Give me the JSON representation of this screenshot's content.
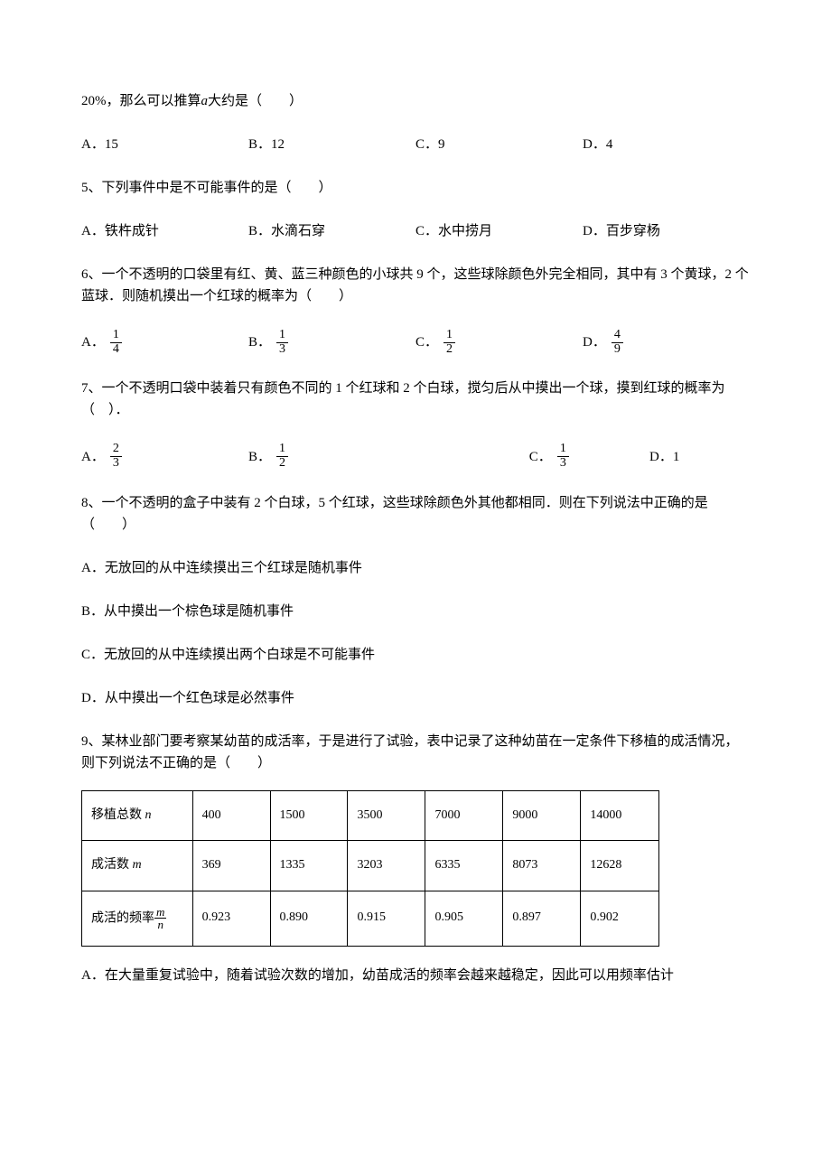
{
  "q_pre": "20%，那么可以推算",
  "q_pre_var": "a",
  "q_pre_after": "大约是（　　）",
  "q_pre_options": {
    "A": "A．15",
    "B": "B．12",
    "C": "C．9",
    "D": "D．4"
  },
  "q5": {
    "stem": "5、下列事件中是不可能事件的是（　　）",
    "A": "A．铁杵成针",
    "B": "B．水滴石穿",
    "C": "C．水中捞月",
    "D": "D．百步穿杨"
  },
  "q6": {
    "stem": "6、一个不透明的口袋里有红、黄、蓝三种颜色的小球共 9 个，这些球除颜色外完全相同，其中有 3 个黄球，2 个蓝球．则随机摸出一个红球的概率为（　　）",
    "A": "A．",
    "B": "B．",
    "C": "C．",
    "D": "D．",
    "fracs": {
      "A": [
        "1",
        "4"
      ],
      "B": [
        "1",
        "3"
      ],
      "C": [
        "1",
        "2"
      ],
      "D": [
        "4",
        "9"
      ]
    }
  },
  "q7": {
    "stem": "7、一个不透明口袋中装着只有颜色不同的 1 个红球和 2 个白球，搅匀后从中摸出一个球，摸到红球的概率为（　）．",
    "A": "A．",
    "B": "B．",
    "C": "C．",
    "D": "D．1",
    "fracs": {
      "A": [
        "2",
        "3"
      ],
      "B": [
        "1",
        "2"
      ],
      "C": [
        "1",
        "3"
      ]
    }
  },
  "q8": {
    "stem": "8、一个不透明的盒子中装有 2 个白球，5 个红球，这些球除颜色外其他都相同．则在下列说法中正确的是（　　）",
    "A": "A．无放回的从中连续摸出三个红球是随机事件",
    "B": "B．从中摸出一个棕色球是随机事件",
    "C": "C．无放回的从中连续摸出两个白球是不可能事件",
    "D": "D．从中摸出一个红色球是必然事件"
  },
  "q9": {
    "stem": "9、某林业部门要考察某幼苗的成活率，于是进行了试验，表中记录了这种幼苗在一定条件下移植的成活情况，则下列说法不正确的是（　　）",
    "table": {
      "rows": [
        {
          "label_pre": "移植总数 ",
          "var": "n",
          "cells": [
            "400",
            "1500",
            "3500",
            "7000",
            "9000",
            "14000"
          ]
        },
        {
          "label_pre": "成活数 ",
          "var": "m",
          "cells": [
            "369",
            "1335",
            "3203",
            "6335",
            "8073",
            "12628"
          ]
        },
        {
          "label_pre": "成活的频率",
          "frac": [
            "m",
            "n"
          ],
          "cells": [
            "0.923",
            "0.890",
            "0.915",
            "0.905",
            "0.897",
            "0.902"
          ]
        }
      ]
    },
    "A": "A．在大量重复试验中，随着试验次数的增加，幼苗成活的频率会越来越稳定，因此可以用频率估计"
  }
}
